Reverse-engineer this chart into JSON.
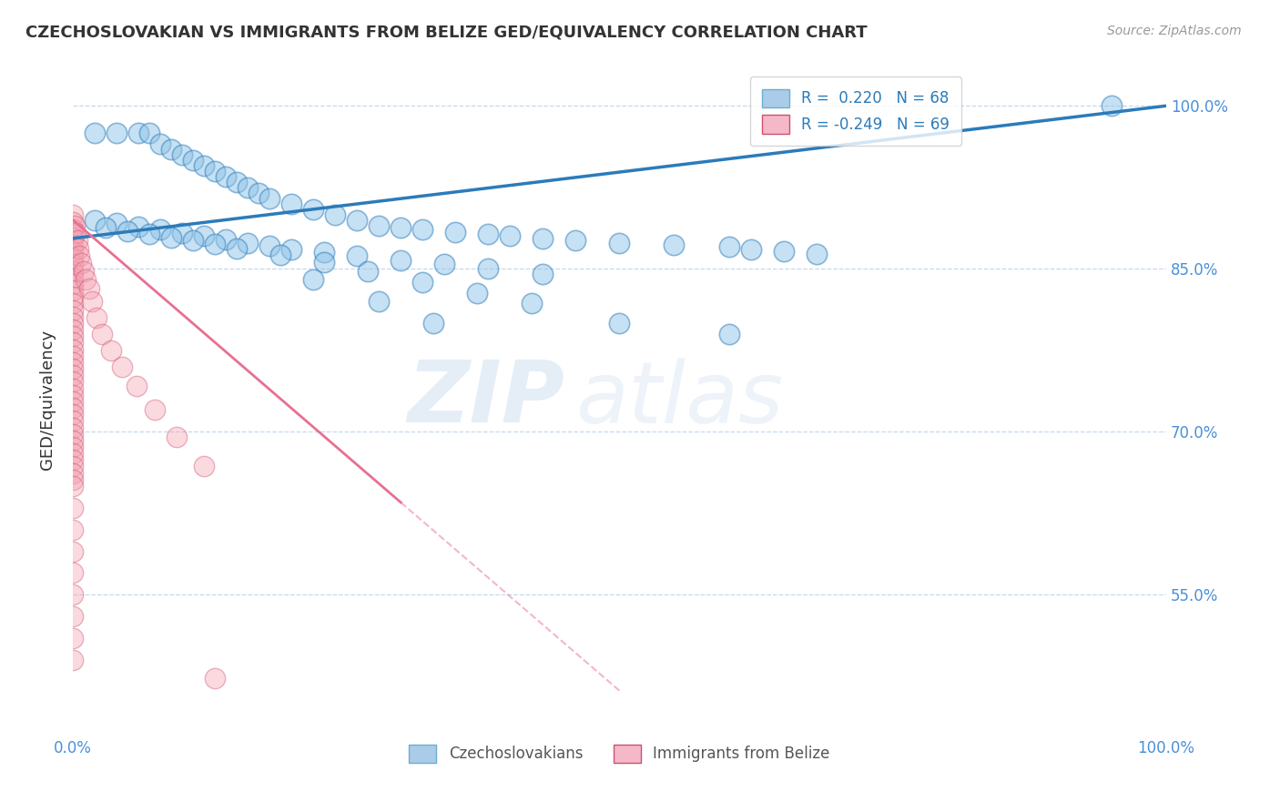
{
  "title": "CZECHOSLOVAKIAN VS IMMIGRANTS FROM BELIZE GED/EQUIVALENCY CORRELATION CHART",
  "source": "Source: ZipAtlas.com",
  "ylabel": "GED/Equivalency",
  "xlabel": "",
  "xlim": [
    0.0,
    1.0
  ],
  "ylim": [
    0.42,
    1.04
  ],
  "ytick_positions": [
    0.55,
    0.7,
    0.85,
    1.0
  ],
  "ytick_labels": [
    "55.0%",
    "70.0%",
    "85.0%",
    "100.0%"
  ],
  "legend_blue_label": "R =  0.220   N = 68",
  "legend_pink_label": "R = -0.249   N = 69",
  "blue_color": "#8fc4e8",
  "pink_color": "#f4a0b0",
  "blue_line_color": "#2b7bba",
  "pink_line_color": "#e87090",
  "watermark_zip": "ZIP",
  "watermark_atlas": "atlas",
  "blue_line_x0": 0.0,
  "blue_line_y0": 0.878,
  "blue_line_x1": 1.0,
  "blue_line_y1": 1.0,
  "pink_line_x0": 0.0,
  "pink_line_y0": 0.895,
  "pink_line_x1": 0.3,
  "pink_line_y1": 0.635,
  "blue_scatter_x": [
    0.02,
    0.04,
    0.06,
    0.07,
    0.08,
    0.09,
    0.1,
    0.11,
    0.12,
    0.13,
    0.14,
    0.15,
    0.16,
    0.17,
    0.18,
    0.2,
    0.22,
    0.24,
    0.26,
    0.28,
    0.3,
    0.32,
    0.35,
    0.38,
    0.4,
    0.43,
    0.46,
    0.5,
    0.55,
    0.6,
    0.62,
    0.65,
    0.68,
    0.02,
    0.04,
    0.06,
    0.08,
    0.1,
    0.12,
    0.14,
    0.16,
    0.18,
    0.2,
    0.23,
    0.26,
    0.3,
    0.34,
    0.38,
    0.43,
    0.03,
    0.05,
    0.07,
    0.09,
    0.11,
    0.13,
    0.15,
    0.19,
    0.23,
    0.27,
    0.32,
    0.37,
    0.42,
    0.5,
    0.6,
    0.95,
    0.28,
    0.33,
    0.22
  ],
  "blue_scatter_y": [
    0.975,
    0.975,
    0.975,
    0.975,
    0.965,
    0.96,
    0.955,
    0.95,
    0.945,
    0.94,
    0.935,
    0.93,
    0.925,
    0.92,
    0.915,
    0.91,
    0.905,
    0.9,
    0.895,
    0.89,
    0.888,
    0.886,
    0.884,
    0.882,
    0.88,
    0.878,
    0.876,
    0.874,
    0.872,
    0.87,
    0.868,
    0.866,
    0.864,
    0.895,
    0.892,
    0.889,
    0.886,
    0.883,
    0.88,
    0.877,
    0.874,
    0.871,
    0.868,
    0.865,
    0.862,
    0.858,
    0.854,
    0.85,
    0.845,
    0.888,
    0.885,
    0.882,
    0.879,
    0.876,
    0.873,
    0.869,
    0.863,
    0.856,
    0.848,
    0.838,
    0.828,
    0.818,
    0.8,
    0.79,
    1.0,
    0.82,
    0.8,
    0.84
  ],
  "pink_scatter_x": [
    0.0,
    0.0,
    0.0,
    0.0,
    0.0,
    0.0,
    0.0,
    0.0,
    0.0,
    0.0,
    0.0,
    0.0,
    0.0,
    0.0,
    0.0,
    0.0,
    0.0,
    0.0,
    0.0,
    0.0,
    0.0,
    0.0,
    0.0,
    0.0,
    0.0,
    0.0,
    0.0,
    0.0,
    0.0,
    0.0,
    0.0,
    0.0,
    0.0,
    0.0,
    0.0,
    0.0,
    0.0,
    0.0,
    0.0,
    0.0,
    0.0,
    0.002,
    0.003,
    0.004,
    0.005,
    0.006,
    0.008,
    0.01,
    0.012,
    0.015,
    0.018,
    0.022,
    0.027,
    0.035,
    0.045,
    0.058,
    0.075,
    0.095,
    0.12,
    0.0,
    0.0,
    0.0,
    0.0,
    0.0,
    0.0,
    0.0,
    0.0,
    0.0,
    0.13
  ],
  "pink_scatter_y": [
    0.9,
    0.893,
    0.886,
    0.879,
    0.872,
    0.866,
    0.86,
    0.854,
    0.848,
    0.842,
    0.836,
    0.83,
    0.824,
    0.818,
    0.812,
    0.806,
    0.8,
    0.794,
    0.788,
    0.782,
    0.776,
    0.77,
    0.764,
    0.758,
    0.752,
    0.746,
    0.74,
    0.734,
    0.728,
    0.722,
    0.716,
    0.71,
    0.704,
    0.698,
    0.692,
    0.686,
    0.68,
    0.674,
    0.668,
    0.662,
    0.656,
    0.89,
    0.883,
    0.876,
    0.869,
    0.862,
    0.855,
    0.848,
    0.84,
    0.832,
    0.82,
    0.805,
    0.79,
    0.775,
    0.76,
    0.742,
    0.72,
    0.695,
    0.668,
    0.65,
    0.63,
    0.61,
    0.59,
    0.57,
    0.55,
    0.53,
    0.51,
    0.49,
    0.473
  ]
}
